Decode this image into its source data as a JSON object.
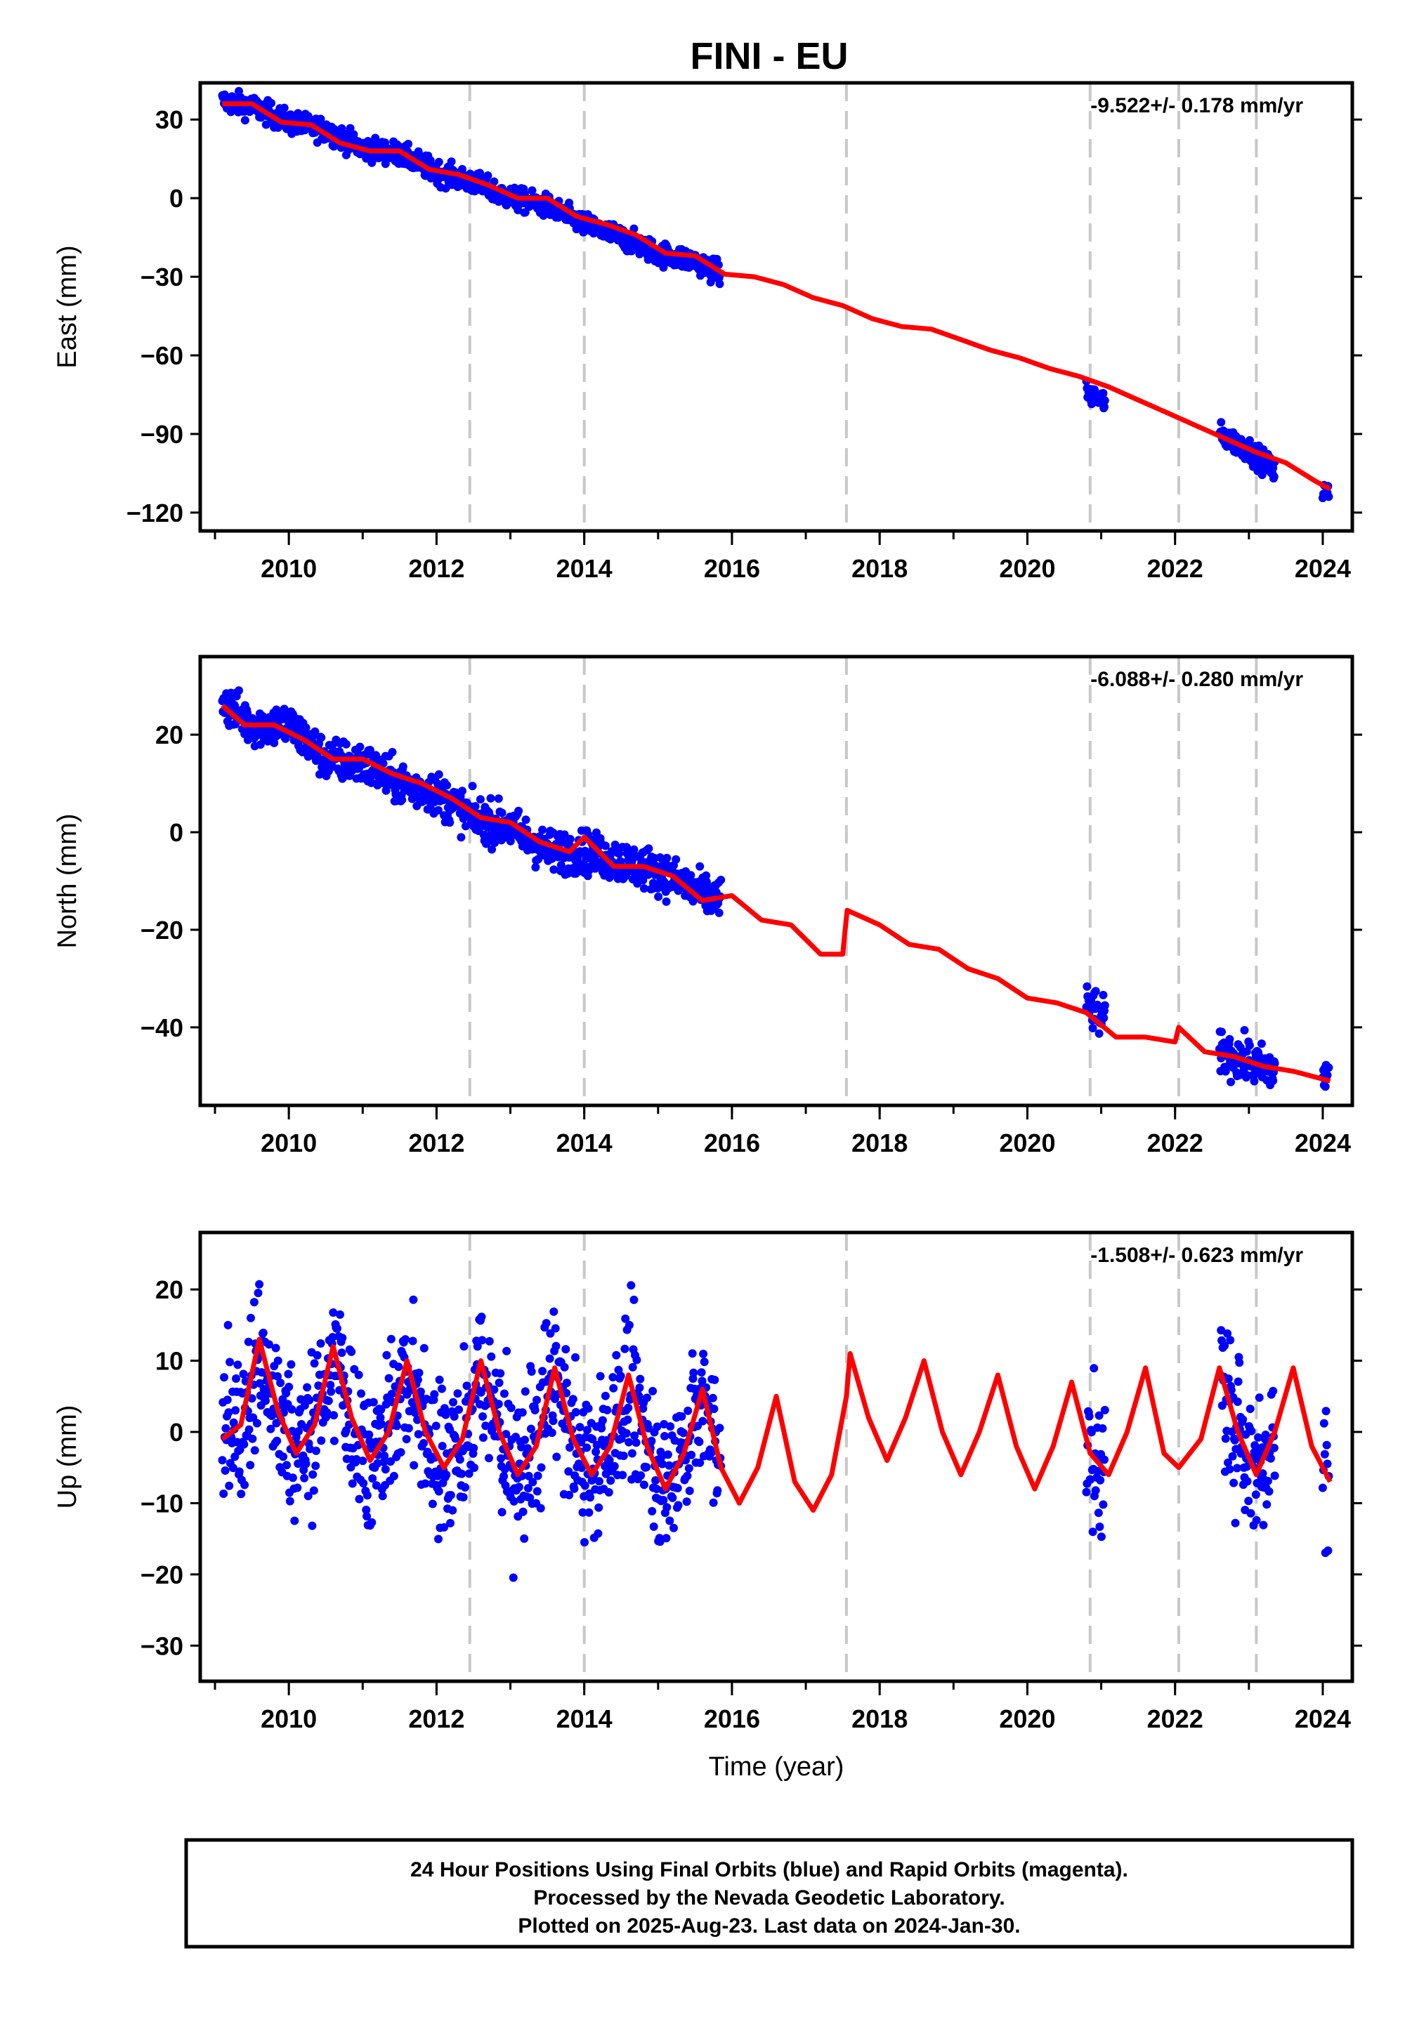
{
  "title": "FINI - EU",
  "note": {
    "lines": [
      "24 Hour Positions Using Final Orbits (blue) and Rapid Orbits (magenta).",
      "Processed by the Nevada Geodetic Laboratory.",
      "Plotted on 2025-Aug-23. Last data on 2024-Jan-30."
    ]
  },
  "colors": {
    "data": "#0000ff",
    "model": "#ff0000",
    "steps": "#c8c8c8",
    "frame": "#000000"
  },
  "chart_data": [
    {
      "type": "scatter",
      "ylabel": "East (mm)",
      "xlabel": "",
      "rate_label": "-9.522+/- 0.178 mm/yr",
      "xlim": [
        2008.8,
        2024.4
      ],
      "ylim": [
        -127,
        44
      ],
      "xticks": [
        2010,
        2012,
        2014,
        2016,
        2018,
        2020,
        2022,
        2024
      ],
      "xtick_labels": [
        "2010",
        "2012",
        "2014",
        "2016",
        "2018",
        "2020",
        "2022",
        "2024"
      ],
      "yticks": [
        30,
        0,
        -30,
        -60,
        -90,
        -120
      ],
      "ytick_labels": [
        "30",
        "0",
        "−30",
        "−60",
        "−90",
        "−120"
      ],
      "step_epochs": [
        2012.45,
        2014.0,
        2017.55,
        2020.85,
        2022.05,
        2023.1
      ],
      "series": [
        {
          "kind": "model",
          "x": [
            2009.1,
            2009.5,
            2009.9,
            2010.3,
            2010.7,
            2011.1,
            2011.5,
            2011.9,
            2012.3,
            2012.7,
            2013.1,
            2013.5,
            2013.9,
            2014.3,
            2014.7,
            2015.1,
            2015.5,
            2015.9,
            2016.3,
            2016.7,
            2017.1,
            2017.5,
            2017.9,
            2018.3,
            2018.7,
            2019.1,
            2019.5,
            2019.9,
            2020.3,
            2020.7,
            2021.1,
            2021.5,
            2021.9,
            2022.3,
            2022.7,
            2023.1,
            2023.5,
            2023.9,
            2024.1
          ],
          "y": [
            36,
            36,
            29,
            28,
            21,
            18,
            18,
            11,
            9,
            5,
            0,
            0,
            -7,
            -10,
            -14,
            -21,
            -22,
            -29,
            -30,
            -33,
            -38,
            -41,
            -46,
            -49,
            -50,
            -54,
            -58,
            -61,
            -65,
            -68,
            -72,
            -77,
            -82,
            -87,
            -92,
            -97,
            -101,
            -108,
            -111
          ]
        },
        {
          "kind": "observed",
          "segments": [
            [
              2009.1,
              2015.85
            ],
            [
              2020.8,
              2021.05
            ],
            [
              2022.6,
              2023.35
            ],
            [
              2024.0,
              2024.08
            ]
          ],
          "x": [
            2009.1,
            2009.5,
            2010.0,
            2010.5,
            2011.0,
            2011.5,
            2012.0,
            2012.5,
            2013.0,
            2013.5,
            2014.0,
            2014.5,
            2015.0,
            2015.5,
            2015.85,
            2020.8,
            2021.0,
            2022.6,
            2023.0,
            2023.3,
            2024.0,
            2024.08
          ],
          "y": [
            37,
            35,
            29,
            26,
            19,
            17,
            10,
            6,
            0,
            -3,
            -10,
            -15,
            -21,
            -24,
            -29,
            -74,
            -77,
            -90,
            -96,
            -103,
            -112,
            -113
          ]
        }
      ]
    },
    {
      "type": "scatter",
      "ylabel": "North (mm)",
      "xlabel": "",
      "rate_label": "-6.088+/- 0.280 mm/yr",
      "xlim": [
        2008.8,
        2024.4
      ],
      "ylim": [
        -56,
        36
      ],
      "xticks": [
        2010,
        2012,
        2014,
        2016,
        2018,
        2020,
        2022,
        2024
      ],
      "xtick_labels": [
        "2010",
        "2012",
        "2014",
        "2016",
        "2018",
        "2020",
        "2022",
        "2024"
      ],
      "yticks": [
        20,
        0,
        -20,
        -40
      ],
      "ytick_labels": [
        "20",
        "0",
        "−20",
        "−40"
      ],
      "step_epochs": [
        2012.45,
        2014.0,
        2017.55,
        2020.85,
        2022.05,
        2023.1
      ],
      "series": [
        {
          "kind": "model",
          "x": [
            2009.1,
            2009.4,
            2009.8,
            2010.2,
            2010.6,
            2011.0,
            2011.4,
            2011.8,
            2012.2,
            2012.6,
            2013.0,
            2013.4,
            2013.8,
            2014.0,
            2014.4,
            2014.8,
            2015.2,
            2015.6,
            2016.0,
            2016.4,
            2016.8,
            2017.2,
            2017.5,
            2017.56,
            2018.0,
            2018.4,
            2018.8,
            2019.2,
            2019.6,
            2020.0,
            2020.4,
            2020.8,
            2021.2,
            2021.6,
            2022.0,
            2022.05,
            2022.4,
            2022.8,
            2023.2,
            2023.6,
            2024.1
          ],
          "y": [
            26,
            22,
            22,
            19,
            15,
            15,
            12,
            10,
            7,
            3,
            2,
            -2,
            -4,
            -1,
            -7,
            -7,
            -9,
            -14,
            -13,
            -18,
            -19,
            -25,
            -25,
            -16,
            -19,
            -23,
            -24,
            -28,
            -30,
            -34,
            -35,
            -37,
            -42,
            -42,
            -43,
            -40,
            -45,
            -46,
            -48,
            -49,
            -51
          ]
        },
        {
          "kind": "observed",
          "segments": [
            [
              2009.1,
              2015.85
            ],
            [
              2020.8,
              2021.05
            ],
            [
              2022.6,
              2023.35
            ],
            [
              2024.0,
              2024.08
            ]
          ],
          "x": [
            2009.1,
            2009.5,
            2010.0,
            2010.5,
            2011.0,
            2011.5,
            2012.0,
            2012.5,
            2013.0,
            2013.5,
            2014.0,
            2014.5,
            2015.0,
            2015.5,
            2015.85,
            2020.8,
            2021.0,
            2022.6,
            2023.0,
            2023.3,
            2024.0,
            2024.08
          ],
          "y": [
            27,
            22,
            22,
            15,
            14,
            10,
            8,
            3,
            1,
            -4,
            -4,
            -6,
            -8,
            -12,
            -14,
            -35,
            -38,
            -45,
            -47,
            -49,
            -49,
            -50
          ]
        }
      ]
    },
    {
      "type": "scatter",
      "ylabel": "Up (mm)",
      "xlabel": "Time (year)",
      "rate_label": "-1.508+/- 0.623 mm/yr",
      "xlim": [
        2008.8,
        2024.4
      ],
      "ylim": [
        -35,
        28
      ],
      "xticks": [
        2010,
        2012,
        2014,
        2016,
        2018,
        2020,
        2022,
        2024
      ],
      "xtick_labels": [
        "2010",
        "2012",
        "2014",
        "2016",
        "2018",
        "2020",
        "2022",
        "2024"
      ],
      "yticks": [
        20,
        10,
        0,
        -10,
        -20,
        -30
      ],
      "ytick_labels": [
        "20",
        "10",
        "0",
        "−10",
        "−20",
        "−30"
      ],
      "step_epochs": [
        2012.45,
        2014.0,
        2017.55,
        2020.85,
        2022.05,
        2023.1
      ],
      "series": [
        {
          "kind": "model",
          "x": [
            2009.1,
            2009.35,
            2009.6,
            2009.85,
            2010.1,
            2010.35,
            2010.6,
            2010.85,
            2011.1,
            2011.35,
            2011.6,
            2011.85,
            2012.1,
            2012.35,
            2012.6,
            2012.85,
            2013.1,
            2013.35,
            2013.6,
            2013.85,
            2014.1,
            2014.35,
            2014.6,
            2014.85,
            2015.1,
            2015.35,
            2015.6,
            2015.85,
            2016.1,
            2016.35,
            2016.6,
            2016.85,
            2017.1,
            2017.35,
            2017.55,
            2017.6,
            2017.85,
            2018.1,
            2018.35,
            2018.6,
            2018.85,
            2019.1,
            2019.35,
            2019.6,
            2019.85,
            2020.1,
            2020.35,
            2020.6,
            2020.85,
            2021.1,
            2021.35,
            2021.6,
            2021.85,
            2022.05,
            2022.35,
            2022.6,
            2022.85,
            2023.1,
            2023.35,
            2023.6,
            2023.85,
            2024.1
          ],
          "y": [
            -1,
            1,
            13,
            3,
            -3,
            1,
            12,
            2,
            -4,
            0,
            10,
            0,
            -5,
            -1,
            10,
            0,
            -6,
            -2,
            9,
            -1,
            -6,
            -2,
            8,
            -2,
            -8,
            -3,
            6,
            -5,
            -10,
            -5,
            5,
            -7,
            -11,
            -6,
            5,
            11,
            2,
            -4,
            2,
            10,
            0,
            -6,
            0,
            8,
            -2,
            -8,
            -2,
            7,
            -3,
            -6,
            0,
            9,
            -3,
            -5,
            -1,
            9,
            0,
            -6,
            0,
            9,
            -2,
            -7
          ]
        },
        {
          "kind": "observed",
          "segments": [
            [
              2009.1,
              2015.85
            ],
            [
              2020.8,
              2021.05
            ],
            [
              2022.6,
              2023.35
            ],
            [
              2024.0,
              2024.08
            ]
          ],
          "x": [
            2009.1,
            2009.6,
            2010.1,
            2010.6,
            2011.1,
            2011.6,
            2012.1,
            2012.6,
            2013.1,
            2013.6,
            2014.1,
            2014.6,
            2015.1,
            2015.6,
            2020.8,
            2021.0,
            2022.6,
            2023.0,
            2023.3,
            2024.0,
            2024.08
          ],
          "y": [
            0,
            13,
            -2,
            12,
            -4,
            10,
            -5,
            10,
            -6,
            9,
            -6,
            8,
            -8,
            6,
            5,
            -5,
            8,
            -5,
            -2,
            -7,
            -5
          ]
        }
      ]
    }
  ]
}
